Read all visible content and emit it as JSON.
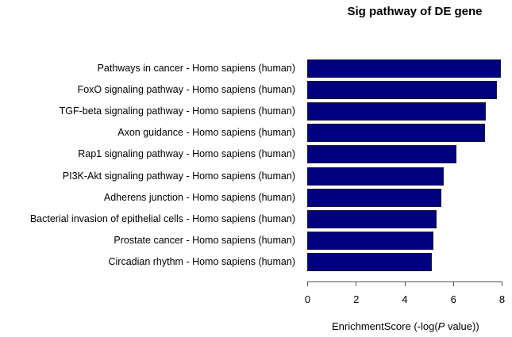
{
  "chart_data": {
    "type": "bar",
    "orientation": "horizontal",
    "title": "Sig pathway of DE gene",
    "xlabel": "EnrichmentScore (-log(P value))",
    "xlabel_parts": {
      "prefix": "EnrichmentScore (-log(",
      "italic": "P",
      "suffix": " value))"
    },
    "ylabel": "",
    "xlim": [
      0,
      8
    ],
    "xticks": [
      0,
      2,
      4,
      6,
      8
    ],
    "grid": false,
    "legend": null,
    "bar_color": "#000080",
    "categories": [
      "Pathways in cancer - Homo sapiens (human)",
      "FoxO signaling pathway - Homo sapiens (human)",
      "TGF-beta signaling pathway - Homo sapiens (human)",
      "Axon guidance - Homo sapiens (human)",
      "Rap1 signaling pathway - Homo sapiens (human)",
      "PI3K-Akt signaling pathway - Homo sapiens (human)",
      "Adherens junction - Homo sapiens (human)",
      "Bacterial invasion of epithelial cells - Homo sapiens (human)",
      "Prostate cancer - Homo sapiens (human)",
      "Circadian rhythm - Homo sapiens (human)"
    ],
    "values": [
      7.97,
      7.81,
      7.35,
      7.32,
      6.14,
      5.62,
      5.52,
      5.33,
      5.19,
      5.13
    ]
  }
}
